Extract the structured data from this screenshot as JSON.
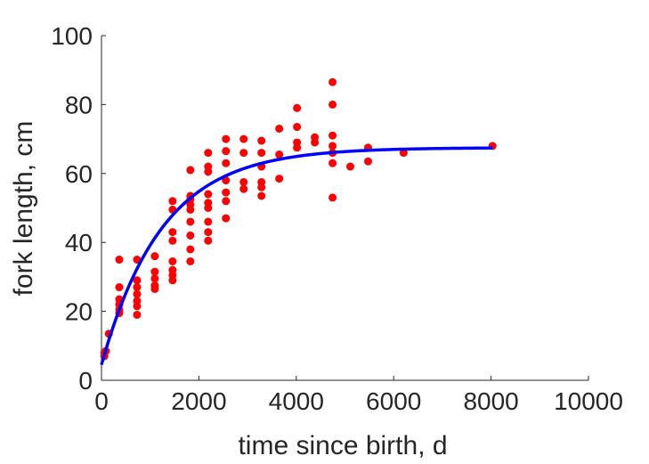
{
  "chart_data": {
    "type": "scatter",
    "xlabel": "time since birth, d",
    "ylabel": "fork length, cm",
    "xlim": [
      0,
      10000
    ],
    "ylim": [
      0,
      100
    ],
    "x_ticks": [
      "0",
      "2000",
      "4000",
      "6000",
      "8000",
      "10000"
    ],
    "y_ticks": [
      "0",
      "20",
      "40",
      "60",
      "80",
      "100"
    ],
    "grid": false,
    "series": [
      {
        "type": "scatter",
        "color": "#ff0000",
        "points": [
          [
            60,
            7
          ],
          [
            60,
            8
          ],
          [
            90,
            8.5
          ],
          [
            150,
            13.5
          ],
          [
            365,
            35
          ],
          [
            365,
            27
          ],
          [
            365,
            23.5
          ],
          [
            365,
            22
          ],
          [
            365,
            20.5
          ],
          [
            365,
            19.5
          ],
          [
            730,
            35
          ],
          [
            730,
            29
          ],
          [
            730,
            27
          ],
          [
            730,
            25
          ],
          [
            730,
            23
          ],
          [
            730,
            21.5
          ],
          [
            730,
            19
          ],
          [
            1095,
            36
          ],
          [
            1095,
            31.5
          ],
          [
            1095,
            29.5
          ],
          [
            1095,
            27.5
          ],
          [
            1095,
            26.5
          ],
          [
            1460,
            52
          ],
          [
            1460,
            49.5
          ],
          [
            1460,
            43
          ],
          [
            1460,
            40.5
          ],
          [
            1460,
            34.5
          ],
          [
            1460,
            32
          ],
          [
            1460,
            30.5
          ],
          [
            1460,
            29
          ],
          [
            1825,
            61
          ],
          [
            1825,
            53.5
          ],
          [
            1825,
            52.5
          ],
          [
            1825,
            51
          ],
          [
            1825,
            49.5
          ],
          [
            1825,
            46
          ],
          [
            1825,
            42
          ],
          [
            1825,
            38
          ],
          [
            1825,
            34.5
          ],
          [
            2190,
            66
          ],
          [
            2190,
            62
          ],
          [
            2190,
            60.5
          ],
          [
            2190,
            54
          ],
          [
            2190,
            51.5
          ],
          [
            2190,
            50
          ],
          [
            2190,
            46
          ],
          [
            2190,
            43
          ],
          [
            2190,
            40.5
          ],
          [
            2555,
            70
          ],
          [
            2555,
            66.5
          ],
          [
            2555,
            63
          ],
          [
            2555,
            58
          ],
          [
            2555,
            54.5
          ],
          [
            2555,
            52
          ],
          [
            2555,
            47
          ],
          [
            2920,
            70
          ],
          [
            2920,
            66
          ],
          [
            2920,
            57.5
          ],
          [
            2920,
            55.5
          ],
          [
            3285,
            69.5
          ],
          [
            3285,
            66
          ],
          [
            3285,
            62
          ],
          [
            3285,
            57.5
          ],
          [
            3285,
            56
          ],
          [
            3285,
            53.5
          ],
          [
            3650,
            73
          ],
          [
            3650,
            65.5
          ],
          [
            3650,
            58.5
          ],
          [
            4015,
            79
          ],
          [
            4015,
            73.5
          ],
          [
            4015,
            69
          ],
          [
            4015,
            67.5
          ],
          [
            4380,
            70.5
          ],
          [
            4380,
            69
          ],
          [
            4745,
            86.5
          ],
          [
            4745,
            80
          ],
          [
            4745,
            71
          ],
          [
            4745,
            68
          ],
          [
            4745,
            66
          ],
          [
            4745,
            63
          ],
          [
            4745,
            53
          ],
          [
            5110,
            62
          ],
          [
            5475,
            67.5
          ],
          [
            5475,
            63.5
          ],
          [
            6205,
            66
          ],
          [
            8030,
            68
          ]
        ]
      },
      {
        "type": "line",
        "color": "#0000ff",
        "curve": "von-bertalanffy",
        "L_inf": 67.5,
        "k": 0.0008,
        "L0": 4.5,
        "x_range": [
          0,
          8030
        ]
      }
    ]
  }
}
